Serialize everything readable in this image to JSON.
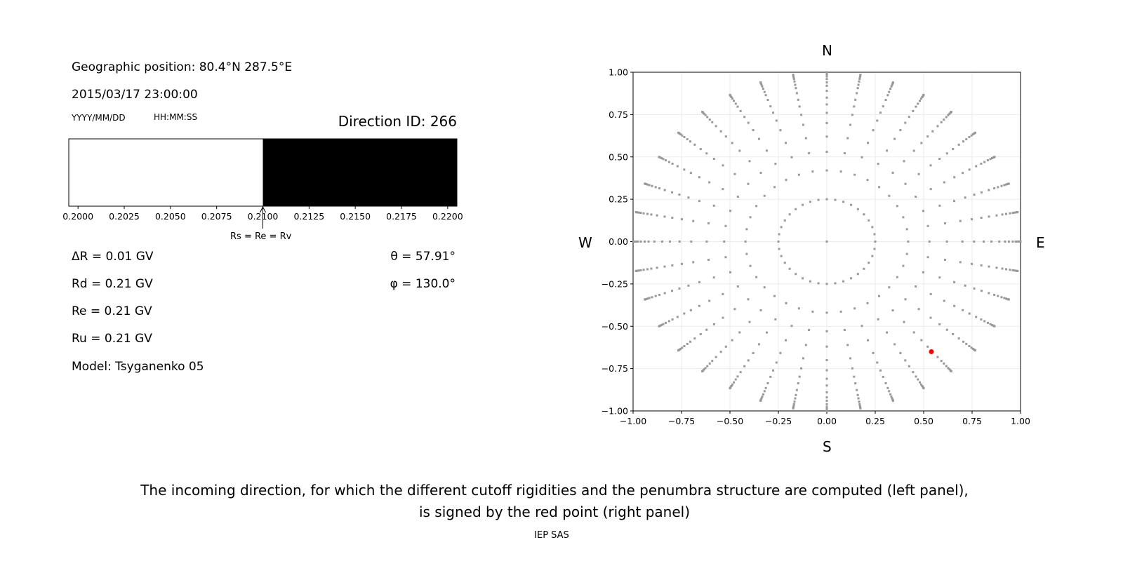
{
  "left_panel": {
    "geo_position": "Geographic position: 80.4°N 287.5°E",
    "datetime": "2015/03/17 23:00:00",
    "date_format": "YYYY/MM/DD",
    "time_format": "HH:MM:SS",
    "direction_id": "Direction ID: 266",
    "delta_r": "ΔR = 0.01 GV",
    "rd": "Rd = 0.21 GV",
    "re": "Re = 0.21 GV",
    "ru": "Ru = 0.21 GV",
    "model": "Model: Tsyganenko 05",
    "theta": "θ = 57.91°",
    "phi": "φ = 130.0°",
    "arrow_label": "Rs = Re = Rv"
  },
  "compass": {
    "n": "N",
    "s": "S",
    "w": "W",
    "e": "E"
  },
  "caption": {
    "line1": "The incoming direction, for which the different cutoff rigidities and the penumbra structure are computed (left panel),",
    "line2": "is signed by the red point (right panel)",
    "credit": "IEP SAS"
  },
  "chart_data": [
    {
      "type": "bar",
      "description_of_marks": "penumbra bar: allowed (white) below cutoff, forbidden (black) above",
      "xlim": [
        0.1995,
        0.2205
      ],
      "xticks": [
        "0.2000",
        "0.2025",
        "0.2050",
        "0.2075",
        "0.2100",
        "0.2125",
        "0.2150",
        "0.2175",
        "0.2200"
      ],
      "segments": [
        {
          "from": 0.1995,
          "to": 0.21,
          "color": "#ffffff"
        },
        {
          "from": 0.21,
          "to": 0.2205,
          "color": "#000000"
        }
      ],
      "arrow_at": 0.21
    },
    {
      "type": "scatter",
      "xlim": [
        -1,
        1
      ],
      "ylim": [
        -1,
        1
      ],
      "grid": true,
      "xticks": [
        "−1.00",
        "−0.75",
        "−0.50",
        "−0.25",
        "0.00",
        "0.25",
        "0.50",
        "0.75",
        "1.00"
      ],
      "yticks": [
        "−1.00",
        "−0.75",
        "−0.50",
        "−0.25",
        "0.00",
        "0.25",
        "0.50",
        "0.75",
        "1.00"
      ],
      "grid_azimuth_step_deg": 10,
      "grid_radii": [
        0.25,
        0.42,
        0.53,
        0.62,
        0.7,
        0.76,
        0.81,
        0.85,
        0.89,
        0.92,
        0.94,
        0.96,
        0.975,
        0.985,
        0.993,
        0.998,
        1.0
      ],
      "center_point": [
        0,
        0
      ],
      "point_color": "#999999",
      "highlight": {
        "x": 0.54,
        "y": -0.65,
        "color": "#ff0000"
      }
    }
  ]
}
